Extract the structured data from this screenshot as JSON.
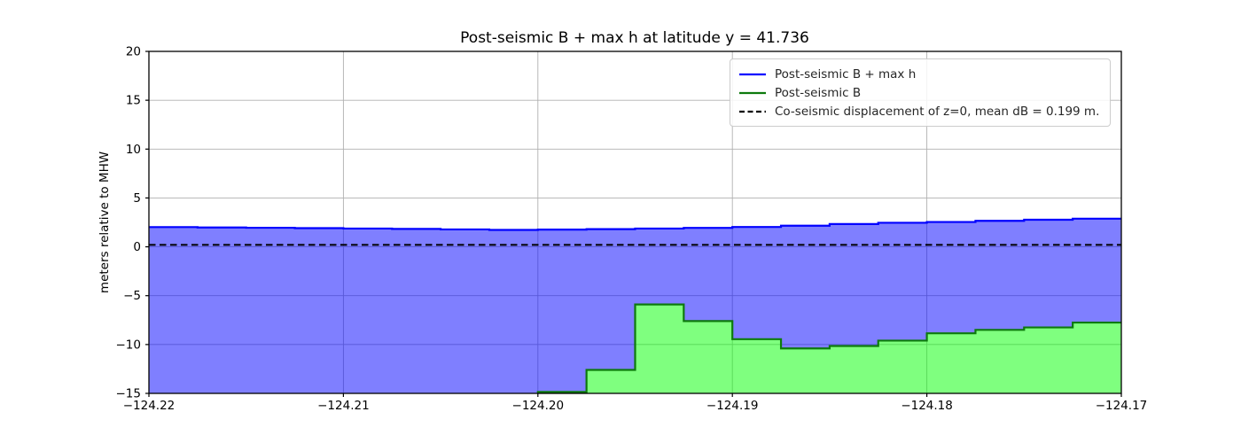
{
  "figure": {
    "background": "#ffffff"
  },
  "chart_data": {
    "type": "area",
    "title": "Post-seismic B + max h at latitude y = 41.736",
    "xlabel": "",
    "ylabel": "meters relative to MHW",
    "xlim": [
      -124.22,
      -124.17
    ],
    "ylim": [
      -15,
      20
    ],
    "grid": true,
    "grid_color": "#b0b0b0",
    "axis_color": "#000000",
    "legend_position": "upper right",
    "xticks": [
      -124.22,
      -124.21,
      -124.2,
      -124.19,
      -124.18,
      -124.17
    ],
    "xtick_labels": [
      "−124.22",
      "−124.21",
      "−124.20",
      "−124.19",
      "−124.18",
      "−124.17"
    ],
    "yticks": [
      -15,
      -10,
      -5,
      0,
      5,
      10,
      15,
      20
    ],
    "ytick_labels": [
      "−15",
      "−10",
      "−5",
      "0",
      "5",
      "10",
      "15",
      "20"
    ],
    "series": [
      {
        "name": "Post-seismic B + max h",
        "type": "step-area",
        "line_color": "#0000ff",
        "fill_color": "rgba(0,0,255,0.5)",
        "edges": [
          -124.22,
          -124.2175,
          -124.215,
          -124.2125,
          -124.21,
          -124.2075,
          -124.205,
          -124.2025,
          -124.2,
          -124.1975,
          -124.195,
          -124.1925,
          -124.19,
          -124.1875,
          -124.185,
          -124.1825,
          -124.18,
          -124.1775,
          -124.175,
          -124.1725,
          -124.17
        ],
        "values": [
          2.02,
          1.98,
          1.95,
          1.91,
          1.87,
          1.83,
          1.78,
          1.73,
          1.76,
          1.81,
          1.87,
          1.94,
          2.03,
          2.16,
          2.33,
          2.46,
          2.54,
          2.66,
          2.77,
          2.88
        ]
      },
      {
        "name": "Post-seismic B",
        "type": "step-area",
        "line_color": "#0d7a0d",
        "fill_color": "rgba(0,255,0,0.5)",
        "edges": [
          -124.2,
          -124.1975,
          -124.195,
          -124.1925,
          -124.19,
          -124.1875,
          -124.185,
          -124.1825,
          -124.18,
          -124.1775,
          -124.175,
          -124.1725,
          -124.17
        ],
        "values": [
          -14.85,
          -12.6,
          -5.9,
          -7.6,
          -9.45,
          -10.4,
          -10.15,
          -9.6,
          -8.85,
          -8.5,
          -8.25,
          -7.75
        ]
      },
      {
        "name": "Co-seismic displacement of z=0, mean dB = 0.199 m.",
        "type": "hline",
        "y": 0.199,
        "line_color": "#000000",
        "dash": true
      }
    ]
  }
}
